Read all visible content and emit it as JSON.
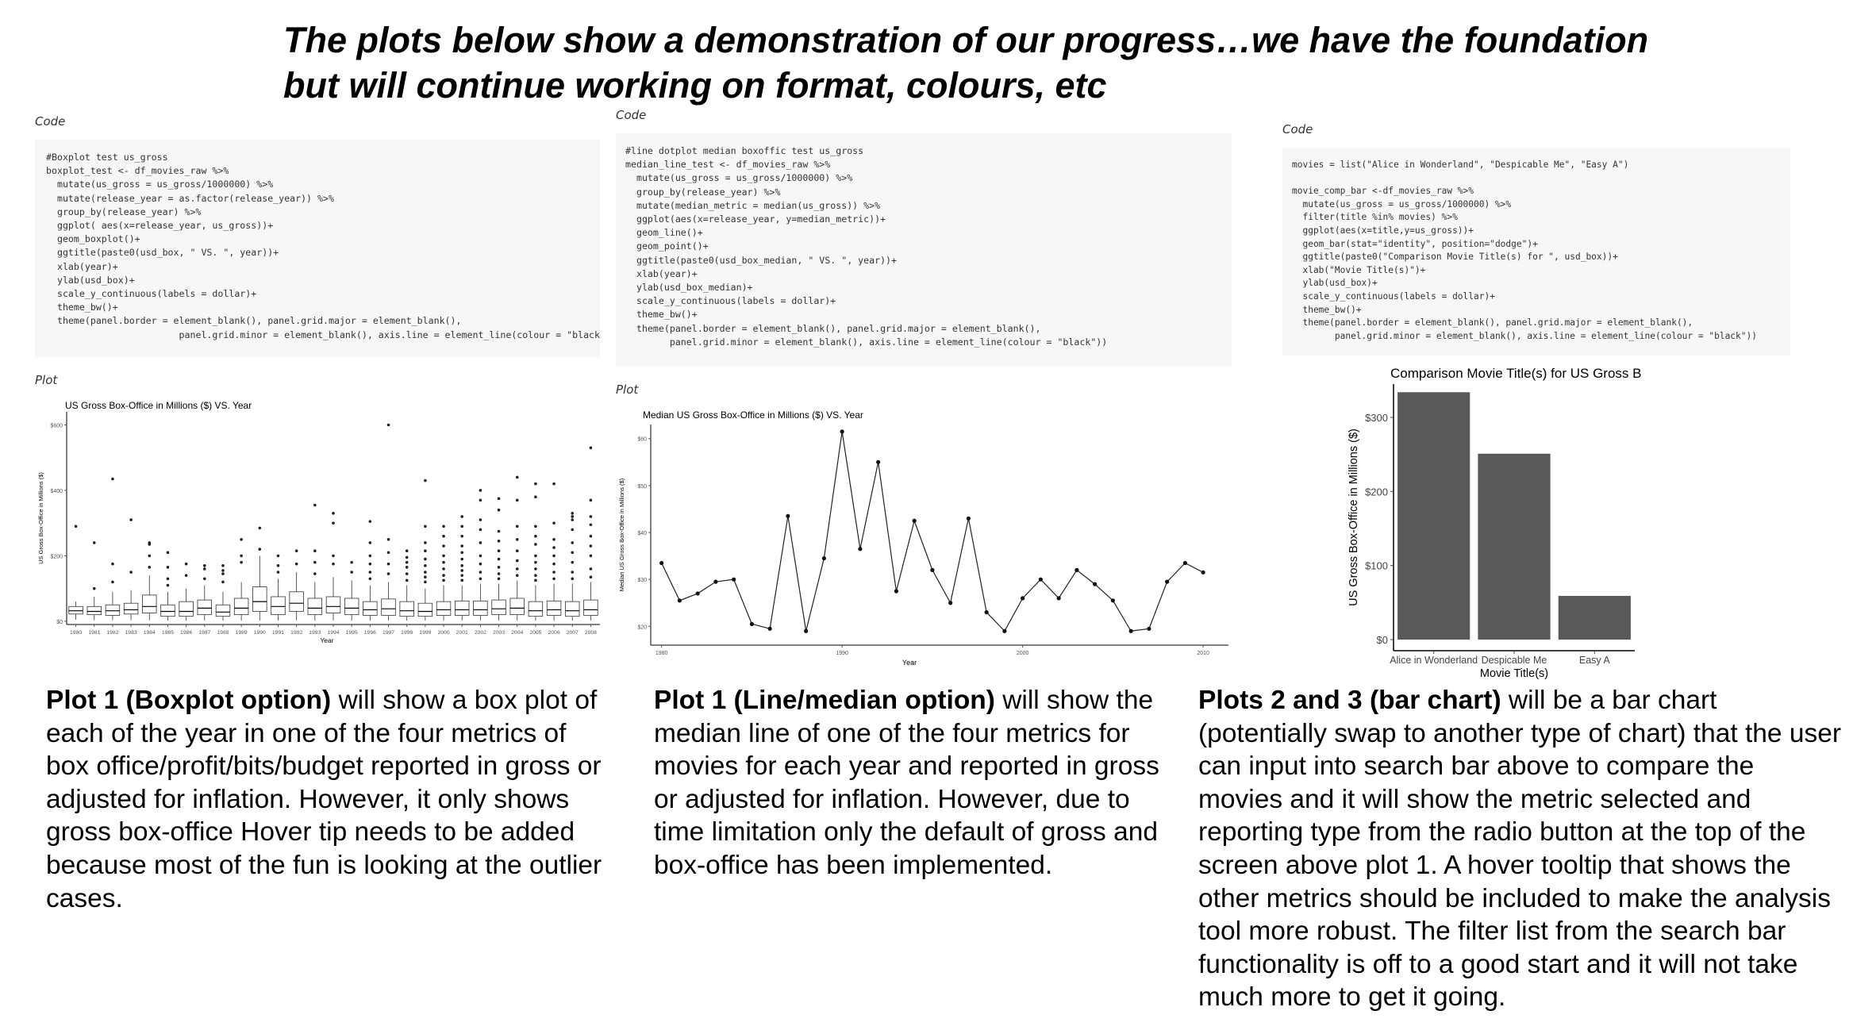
{
  "title": {
    "line1": "The plots below show a demonstration of our progress…we have the foundation",
    "line2": "but will continue working on format, colours, etc"
  },
  "labels": {
    "code": "Code",
    "plot": "Plot"
  },
  "panels": [
    {
      "code_lines": [
        "#Boxplot test us_gross",
        "boxplot_test <- df_movies_raw %>%",
        "  mutate(us_gross = us_gross/1000000) %>%",
        "  mutate(release_year = as.factor(release_year)) %>%",
        "  group_by(release_year) %>%",
        "  ggplot( aes(x=release_year, us_gross))+",
        "  geom_boxplot()+",
        "  ggtitle(paste0(usd_box, \" VS. \", year))+",
        "  xlab(year)+",
        "  ylab(usd_box)+",
        "  scale_y_continuous(labels = dollar)+",
        "  theme_bw()+",
        "  theme(panel.border = element_blank(), panel.grid.major = element_blank(),",
        "                        panel.grid.minor = element_blank(), axis.line = element_line(colour = \"black\"))"
      ],
      "description": {
        "bold": "Plot 1 (Boxplot option)",
        "text": " will show a box plot of each of the year in one of the four metrics of box office/profit/bits/budget reported in gross or adjusted for inflation. However, it only shows gross box-office Hover tip needs to be added because most of the fun is looking at the outlier cases."
      }
    },
    {
      "code_lines": [
        "#line dotplot median boxoffic test us_gross",
        "median_line_test <- df_movies_raw %>%",
        "  mutate(us_gross = us_gross/1000000) %>%",
        "  group_by(release_year) %>%",
        "  mutate(median_metric = median(us_gross)) %>%",
        "  ggplot(aes(x=release_year, y=median_metric))+",
        "  geom_line()+",
        "  geom_point()+",
        "  ggtitle(paste0(usd_box_median, \" VS. \", year))+",
        "  xlab(year)+",
        "  ylab(usd_box_median)+",
        "  scale_y_continuous(labels = dollar)+",
        "  theme_bw()+",
        "  theme(panel.border = element_blank(), panel.grid.major = element_blank(),",
        "        panel.grid.minor = element_blank(), axis.line = element_line(colour = \"black\"))"
      ],
      "description": {
        "bold": "Plot 1 (Line/median option)",
        "text": " will show the median line of one of the four metrics for movies for each year and reported in gross or adjusted for inflation. However, due to time limitation only the default of gross and box-office has been implemented."
      }
    },
    {
      "code_lines": [
        "movies = list(\"Alice in Wonderland\", \"Despicable Me\", \"Easy A\")",
        "",
        "movie_comp_bar <-df_movies_raw %>%",
        "  mutate(us_gross = us_gross/1000000) %>%",
        "  filter(title %in% movies) %>%",
        "  ggplot(aes(x=title,y=us_gross))+",
        "  geom_bar(stat=\"identity\", position=\"dodge\")+",
        "  ggtitle(paste0(\"Comparison Movie Title(s) for \", usd_box))+",
        "  xlab(\"Movie Title(s)\")+",
        "  ylab(usd_box)+",
        "  scale_y_continuous(labels = dollar)+",
        "  theme_bw()+",
        "  theme(panel.border = element_blank(), panel.grid.major = element_blank(),",
        "        panel.grid.minor = element_blank(), axis.line = element_line(colour = \"black\"))"
      ],
      "description": {
        "bold": "Plots 2 and 3 (bar chart)",
        "text": " will be a bar chart (potentially swap to another type of chart) that the user can input into search bar above to compare the movies and it will show the metric selected and reporting type from the radio button at the top of the screen above plot 1. A hover tooltip that shows the other metrics should be included to make the analysis tool more robust. The filter list from the search bar functionality is off to a good start and it will not take much more to get it going."
      }
    }
  ],
  "chart_data": [
    {
      "type": "box",
      "title": "US Gross Box-Office in Millions ($) VS. Year",
      "xlabel": "Year",
      "ylabel": "US Gross Box-Office in Millions ($)",
      "ylim": [
        -10,
        640
      ],
      "yticks": [
        0,
        200,
        400,
        600
      ],
      "ytick_labels": [
        "$0",
        "$200",
        "$400",
        "$600"
      ],
      "categories": [
        "1980",
        "1981",
        "1982",
        "1983",
        "1984",
        "1985",
        "1986",
        "1987",
        "1988",
        "1989",
        "1990",
        "1991",
        "1992",
        "1993",
        "1994",
        "1995",
        "1996",
        "1997",
        "1998",
        "1999",
        "2000",
        "2001",
        "2002",
        "2003",
        "2004",
        "2005",
        "2006",
        "2007",
        "2008"
      ],
      "boxes": [
        {
          "q1": 22,
          "median": 32,
          "q3": 45,
          "lo": 5,
          "hi": 60,
          "out": [
            290
          ]
        },
        {
          "q1": 20,
          "median": 30,
          "q3": 45,
          "lo": 3,
          "hi": 75,
          "out": [
            100,
            240
          ]
        },
        {
          "q1": 18,
          "median": 32,
          "q3": 50,
          "lo": 3,
          "hi": 90,
          "out": [
            120,
            175,
            435
          ]
        },
        {
          "q1": 22,
          "median": 35,
          "q3": 55,
          "lo": 3,
          "hi": 95,
          "out": [
            150,
            310
          ]
        },
        {
          "q1": 25,
          "median": 45,
          "q3": 80,
          "lo": 3,
          "hi": 140,
          "out": [
            165,
            200,
            235,
            240
          ]
        },
        {
          "q1": 15,
          "median": 30,
          "q3": 50,
          "lo": 2,
          "hi": 90,
          "out": [
            110,
            130,
            165,
            210
          ]
        },
        {
          "q1": 15,
          "median": 30,
          "q3": 60,
          "lo": 2,
          "hi": 100,
          "out": [
            140,
            175
          ]
        },
        {
          "q1": 20,
          "median": 40,
          "q3": 65,
          "lo": 2,
          "hi": 110,
          "out": [
            130,
            160,
            170
          ]
        },
        {
          "q1": 15,
          "median": 28,
          "q3": 50,
          "lo": 2,
          "hi": 90,
          "out": [
            120,
            145,
            155,
            170
          ]
        },
        {
          "q1": 20,
          "median": 40,
          "q3": 70,
          "lo": 2,
          "hi": 120,
          "out": [
            180,
            200,
            250
          ]
        },
        {
          "q1": 30,
          "median": 60,
          "q3": 105,
          "lo": 2,
          "hi": 200,
          "out": [
            220,
            285
          ]
        },
        {
          "q1": 20,
          "median": 45,
          "q3": 75,
          "lo": 2,
          "hi": 130,
          "out": [
            150,
            170,
            200
          ]
        },
        {
          "q1": 30,
          "median": 55,
          "q3": 90,
          "lo": 3,
          "hi": 150,
          "out": [
            175,
            215
          ]
        },
        {
          "q1": 20,
          "median": 40,
          "q3": 70,
          "lo": 2,
          "hi": 120,
          "out": [
            145,
            180,
            215,
            355
          ]
        },
        {
          "q1": 25,
          "median": 45,
          "q3": 75,
          "lo": 2,
          "hi": 135,
          "out": [
            175,
            200,
            300,
            330
          ]
        },
        {
          "q1": 20,
          "median": 40,
          "q3": 70,
          "lo": 2,
          "hi": 125,
          "out": [
            150,
            180
          ]
        },
        {
          "q1": 18,
          "median": 35,
          "q3": 60,
          "lo": 2,
          "hi": 110,
          "out": [
            130,
            150,
            175,
            200,
            240,
            305
          ]
        },
        {
          "q1": 18,
          "median": 38,
          "q3": 68,
          "lo": 2,
          "hi": 120,
          "out": [
            145,
            175,
            210,
            250,
            600
          ]
        },
        {
          "q1": 15,
          "median": 32,
          "q3": 60,
          "lo": 2,
          "hi": 110,
          "out": [
            125,
            145,
            165,
            180,
            195,
            215
          ]
        },
        {
          "q1": 15,
          "median": 30,
          "q3": 55,
          "lo": 2,
          "hi": 100,
          "out": [
            120,
            135,
            150,
            170,
            190,
            215,
            240,
            290,
            430
          ]
        },
        {
          "q1": 18,
          "median": 35,
          "q3": 60,
          "lo": 2,
          "hi": 110,
          "out": [
            125,
            140,
            160,
            180,
            200,
            230,
            260,
            290
          ]
        },
        {
          "q1": 18,
          "median": 35,
          "q3": 62,
          "lo": 2,
          "hi": 110,
          "out": [
            125,
            140,
            155,
            170,
            190,
            210,
            230,
            260,
            290,
            320
          ]
        },
        {
          "q1": 18,
          "median": 35,
          "q3": 62,
          "lo": 2,
          "hi": 115,
          "out": [
            130,
            150,
            175,
            200,
            240,
            280,
            310,
            370,
            400
          ]
        },
        {
          "q1": 20,
          "median": 38,
          "q3": 65,
          "lo": 2,
          "hi": 115,
          "out": [
            130,
            145,
            165,
            190,
            215,
            245,
            275,
            340,
            375
          ]
        },
        {
          "q1": 20,
          "median": 40,
          "q3": 70,
          "lo": 2,
          "hi": 125,
          "out": [
            140,
            160,
            185,
            215,
            250,
            290,
            370,
            440
          ]
        },
        {
          "q1": 15,
          "median": 32,
          "q3": 60,
          "lo": 2,
          "hi": 110,
          "out": [
            125,
            140,
            160,
            180,
            200,
            235,
            260,
            290,
            380,
            420
          ]
        },
        {
          "q1": 18,
          "median": 35,
          "q3": 62,
          "lo": 2,
          "hi": 115,
          "out": [
            130,
            150,
            175,
            200,
            225,
            250,
            300,
            420
          ]
        },
        {
          "q1": 15,
          "median": 32,
          "q3": 60,
          "lo": 2,
          "hi": 115,
          "out": [
            130,
            150,
            180,
            210,
            240,
            280,
            310,
            320,
            330
          ]
        },
        {
          "q1": 18,
          "median": 35,
          "q3": 65,
          "lo": 2,
          "hi": 120,
          "out": [
            135,
            160,
            200,
            230,
            260,
            295,
            320,
            370,
            530
          ]
        }
      ]
    },
    {
      "type": "line",
      "title": "Median US Gross Box-Office in Millions ($) VS. Year",
      "xlabel": "Year",
      "ylabel": "Median US Gross Box-Office in Millions ($)",
      "xlim": [
        1979.4,
        2011.4
      ],
      "ylim": [
        16,
        63
      ],
      "xticks": [
        1980,
        1990,
        2000,
        2010
      ],
      "yticks": [
        20,
        30,
        40,
        50,
        60
      ],
      "ytick_labels": [
        "$20",
        "$30",
        "$40",
        "$50",
        "$60"
      ],
      "x": [
        1980,
        1981,
        1982,
        1983,
        1984,
        1985,
        1986,
        1987,
        1988,
        1989,
        1990,
        1991,
        1992,
        1993,
        1994,
        1995,
        1996,
        1997,
        1998,
        1999,
        2000,
        2001,
        2002,
        2003,
        2004,
        2005,
        2006,
        2007,
        2008,
        2009,
        2010
      ],
      "y": [
        33.5,
        25.5,
        27,
        29.5,
        30,
        20.5,
        19.5,
        43.5,
        19,
        34.5,
        61.5,
        36.5,
        55,
        27.5,
        42.5,
        32,
        25,
        43,
        23,
        19,
        26,
        30,
        26,
        32,
        29,
        25.5,
        19,
        19.5,
        29.5,
        33.5,
        31.5
      ]
    },
    {
      "type": "bar",
      "title": "Comparison Movie Title(s) for US Gross B",
      "xlabel": "Movie Title(s)",
      "ylabel": "US Gross Box-Office in Millions ($)",
      "categories": [
        "Alice in Wonderland",
        "Despicable Me",
        "Easy A"
      ],
      "values": [
        334,
        251,
        59
      ],
      "ylim": [
        -15,
        345
      ],
      "yticks": [
        0,
        100,
        200,
        300
      ],
      "ytick_labels": [
        "$0",
        "$100",
        "$200",
        "$300"
      ],
      "color": "#595959"
    }
  ]
}
